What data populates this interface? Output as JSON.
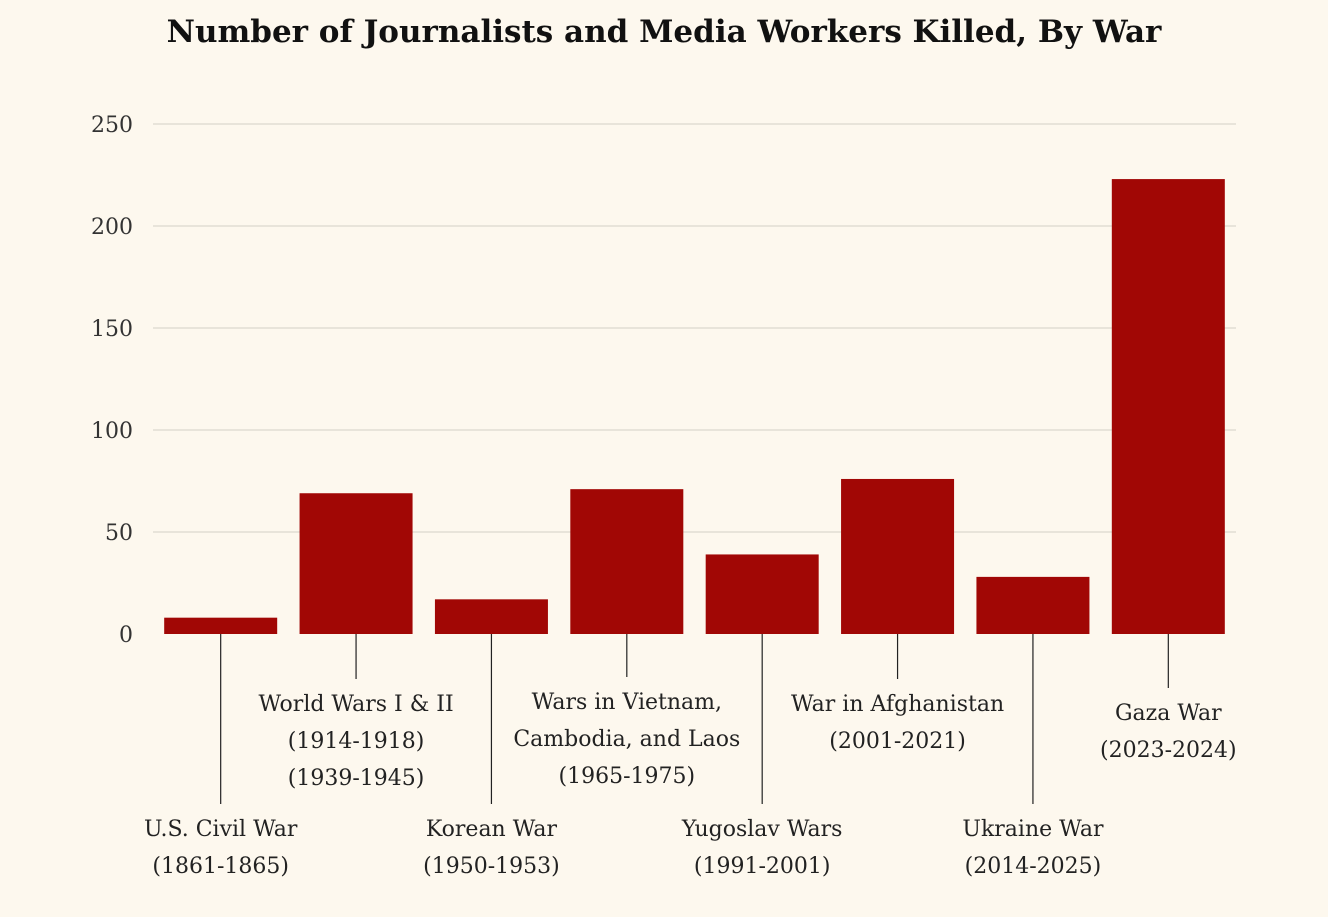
{
  "chart_data": {
    "type": "bar",
    "title": "Number of Journalists and Media Workers Killed, By War",
    "xlabel": "",
    "ylabel": "",
    "ylim": [
      0,
      250
    ],
    "yticks": [
      0,
      50,
      100,
      150,
      200,
      250
    ],
    "grid": true,
    "categories": [
      [
        "U.S. Civil War",
        "(1861-1865)"
      ],
      [
        "World Wars I & II",
        "(1914-1918)",
        "(1939-1945)"
      ],
      [
        "Korean War",
        "(1950-1953)"
      ],
      [
        "Wars in Vietnam,",
        "Cambodia, and Laos",
        "(1965-1975)"
      ],
      [
        "Yugoslav Wars",
        "(1991-2001)"
      ],
      [
        "War in Afghanistan",
        "(2001-2021)"
      ],
      [
        "Ukraine War",
        "(2014-2025)"
      ],
      [
        "Gaza War",
        "(2023-2024)"
      ]
    ],
    "values": [
      8,
      69,
      17,
      71,
      39,
      76,
      28,
      223
    ],
    "bar_color": "#a10705"
  }
}
